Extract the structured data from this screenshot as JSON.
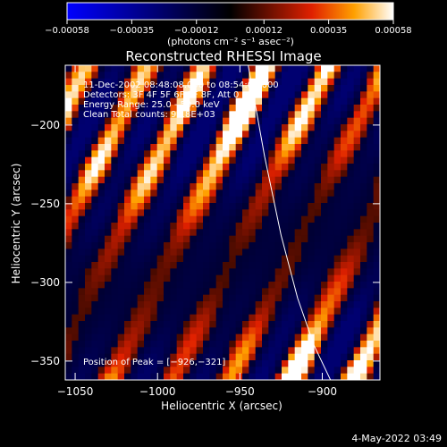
{
  "colorbar": {
    "ticks": [
      "−0.00058",
      "−0.00035",
      "−0.00012",
      "0.00012",
      "0.00035",
      "0.00058"
    ],
    "tick_values": [
      -0.00058,
      -0.00035,
      -0.00012,
      0.00012,
      0.00035,
      0.00058
    ],
    "unit_label": "(photons cm⁻² s⁻¹ asec⁻²)"
  },
  "footer": {
    "timestamp": "4-May-2022 03:49"
  },
  "chart_data": {
    "type": "heatmap",
    "title": "Reconstructed RHESSI Image",
    "xlabel": "Heliocentric X (arcsec)",
    "ylabel": "Heliocentric Y (arcsec)",
    "xlim": [
      -1056,
      -865
    ],
    "ylim": [
      -362,
      -162
    ],
    "x_ticks": [
      -1050,
      -1000,
      -950,
      -900
    ],
    "x_tick_labels": [
      "−1050",
      "−1000",
      "−950",
      "−900"
    ],
    "y_ticks": [
      -200,
      -250,
      -300,
      -350
    ],
    "y_tick_labels": [
      "−200",
      "−250",
      "−300",
      "−350"
    ],
    "zlim": [
      -0.00058,
      0.00058
    ],
    "info_lines": [
      "11-Dec-2002 08:48:08.000 to 08:54:08.000",
      "Detectors: 3F 4F 5F 6F 7F 8F, Att 0",
      "Energy Range: 25.0 - 50.0 keV",
      "Clean     Total counts: 9.18E+03"
    ],
    "peak_label": "Position of Peak = [−926,−321]",
    "peak": [
      -926,
      -321
    ],
    "limb_curve": [
      [
        -945,
        -162
      ],
      [
        -935,
        -220
      ],
      [
        -925,
        -270
      ],
      [
        -915,
        -310
      ],
      [
        -905,
        -340
      ],
      [
        -895,
        -362
      ]
    ]
  }
}
